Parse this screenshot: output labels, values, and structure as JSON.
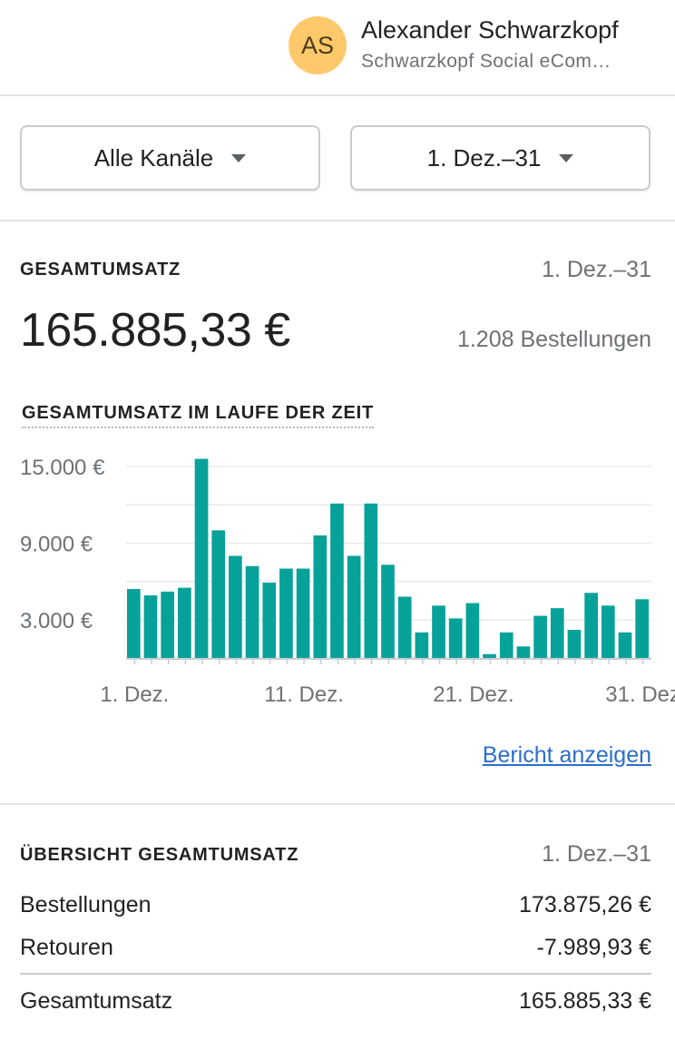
{
  "user": {
    "initials": "AS",
    "name": "Alexander Schwarzkopf",
    "store": "Schwarzkopf Social eCom…"
  },
  "filters": {
    "channel": "Alle Kanäle",
    "date_range": "1. Dez.–31"
  },
  "total_sales": {
    "title": "GESAMTUMSATZ",
    "period": "1. Dez.–31",
    "amount": "165.885,33 €",
    "orders": "1.208 Bestellungen"
  },
  "chart_title": "GESAMTUMSATZ IM LAUFE DER ZEIT",
  "colors": {
    "bar": "#06a29a",
    "link": "#2c6ecb",
    "avatar": "#ffc96b"
  },
  "chart_data": {
    "type": "bar",
    "ylim": [
      0,
      16000
    ],
    "y_ticks": [
      {
        "value": 3000,
        "label": "3.000 €"
      },
      {
        "value": 9000,
        "label": "9.000 €"
      },
      {
        "value": 15000,
        "label": "15.000 €"
      }
    ],
    "x_ticks": [
      {
        "index": 0,
        "label": "1. Dez."
      },
      {
        "index": 10,
        "label": "11. Dez."
      },
      {
        "index": 20,
        "label": "21. Dez."
      },
      {
        "index": 30,
        "label": "31. Dez"
      }
    ],
    "categories": [
      "1",
      "2",
      "3",
      "4",
      "5",
      "6",
      "7",
      "8",
      "9",
      "10",
      "11",
      "12",
      "13",
      "14",
      "15",
      "16",
      "17",
      "18",
      "19",
      "20",
      "21",
      "22",
      "23",
      "24",
      "25",
      "26",
      "27",
      "28",
      "29",
      "30",
      "31"
    ],
    "values": [
      5400,
      4900,
      5200,
      5500,
      15600,
      10000,
      8000,
      7200,
      5900,
      7000,
      7000,
      9600,
      12100,
      8000,
      12100,
      7300,
      4800,
      2000,
      4100,
      3100,
      4300,
      300,
      2000,
      900,
      3300,
      3900,
      2200,
      5100,
      4100,
      2000,
      4600
    ]
  },
  "report_link": "Bericht anzeigen",
  "overview": {
    "title": "ÜBERSICHT GESAMTUMSATZ",
    "period": "1. Dez.–31",
    "rows": [
      {
        "label": "Bestellungen",
        "value": "173.875,26 €"
      },
      {
        "label": "Retouren",
        "value": "-7.989,93 €"
      }
    ],
    "total": {
      "label": "Gesamtumsatz",
      "value": "165.885,33 €"
    }
  }
}
